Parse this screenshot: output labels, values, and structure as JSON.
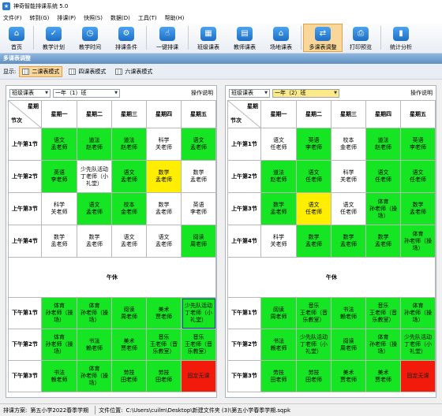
{
  "app": {
    "title": "神奇智能排课系统 5.0"
  },
  "menu": [
    "文件(F)",
    "转到(G)",
    "排课(P)",
    "快照(S)",
    "数据(D)",
    "工具(T)",
    "帮助(H)"
  ],
  "toolbar": [
    {
      "label": "首页",
      "icon": "home-icon",
      "glyph": "⌂"
    },
    {
      "label": "教学计划",
      "icon": "plan-icon",
      "glyph": "✓"
    },
    {
      "label": "教学时间",
      "icon": "clock-icon",
      "glyph": "◷"
    },
    {
      "label": "排课条件",
      "icon": "condition-icon",
      "glyph": "⚙"
    },
    {
      "label": "一键排课",
      "icon": "one-click-icon",
      "glyph": "☝"
    },
    {
      "label": "班级课表",
      "icon": "class-table-icon",
      "glyph": "▦"
    },
    {
      "label": "教师课表",
      "icon": "teacher-table-icon",
      "glyph": "▤"
    },
    {
      "label": "场地课表",
      "icon": "venue-table-icon",
      "glyph": "⌂"
    },
    {
      "label": "多课表调整",
      "icon": "multi-adjust-icon",
      "glyph": "⇄",
      "active": true
    },
    {
      "label": "打印预览",
      "icon": "print-icon",
      "glyph": "⎙"
    },
    {
      "label": "统计分析",
      "icon": "stats-icon",
      "glyph": "▮"
    }
  ],
  "section_title": "多课表调整",
  "display_label": "显示:",
  "modes": [
    {
      "label": "二课表模式",
      "active": true
    },
    {
      "label": "四课表模式",
      "active": false
    },
    {
      "label": "六课表模式",
      "active": false
    }
  ],
  "help_label": "操作说明",
  "corner": {
    "top": "星期",
    "bottom": "节次"
  },
  "days": [
    "星期一",
    "星期二",
    "星期三",
    "星期四",
    "星期五"
  ],
  "lunch_label": "午休",
  "panels": [
    {
      "type_select": "班级课表",
      "class_select": "一年（1）班",
      "periods": [
        {
          "label": "上午第1节",
          "cells": [
            {
              "t": "语文\n孟老师",
              "c": "g"
            },
            {
              "t": "道法\n赵老师",
              "c": "g"
            },
            {
              "t": "道法\n赵老师",
              "c": "g"
            },
            {
              "t": "科学\n关老师",
              "c": "w"
            },
            {
              "t": "语文\n孟老师",
              "c": "g"
            }
          ]
        },
        {
          "label": "上午第2节",
          "cells": [
            {
              "t": "英语\n李老师",
              "c": "g"
            },
            {
              "t": "少先队活动\n丁老师（小\n礼堂）",
              "c": "w"
            },
            {
              "t": "语文\n孟老师",
              "c": "g"
            },
            {
              "t": "数学\n孟老师",
              "c": "y"
            },
            {
              "t": "数学\n孟老师",
              "c": "w"
            }
          ]
        },
        {
          "label": "上午第3节",
          "cells": [
            {
              "t": "科学\n关老师",
              "c": "w"
            },
            {
              "t": "语文\n孟老师",
              "c": "g"
            },
            {
              "t": "校本\n金老师",
              "c": "g"
            },
            {
              "t": "数学\n孟老师",
              "c": "w"
            },
            {
              "t": "英语\n李老师",
              "c": "w"
            }
          ]
        },
        {
          "label": "上午第4节",
          "cells": [
            {
              "t": "数学\n孟老师",
              "c": "w"
            },
            {
              "t": "数学\n孟老师",
              "c": "w"
            },
            {
              "t": "语文\n孟老师",
              "c": "w"
            },
            {
              "t": "语文\n孟老师",
              "c": "w"
            },
            {
              "t": "阅读\n周老师",
              "c": "g"
            }
          ]
        },
        {
          "label": "下午第1节",
          "cells": [
            {
              "t": "体育\n孙老师（操\n场）",
              "c": "g"
            },
            {
              "t": "体育\n孙老师（操\n场）",
              "c": "g"
            },
            {
              "t": "阅读\n周老师",
              "c": "g"
            },
            {
              "t": "美术\n贾老师",
              "c": "g"
            },
            {
              "t": "少先队活动\n丁老师（小\n礼堂）",
              "c": "g",
              "selected": true
            }
          ]
        },
        {
          "label": "下午第2节",
          "cells": [
            {
              "t": "体育\n孙老师（操\n场）",
              "c": "g"
            },
            {
              "t": "书法\n赖老师",
              "c": "g"
            },
            {
              "t": "美术\n贾老师",
              "c": "g"
            },
            {
              "t": "音乐\n王老师（音\n乐教室）",
              "c": "g"
            },
            {
              "t": "音乐\n王老师（音\n乐教室）",
              "c": "g"
            }
          ]
        },
        {
          "label": "下午第3节",
          "cells": [
            {
              "t": "书法\n赖老师",
              "c": "g"
            },
            {
              "t": "体育\n孙老师（操\n场）",
              "c": "g"
            },
            {
              "t": "劳技\n田老师",
              "c": "g"
            },
            {
              "t": "劳技\n田老师",
              "c": "g"
            },
            {
              "t": "固定无课",
              "c": "r"
            }
          ]
        }
      ]
    },
    {
      "type_select": "班级课表",
      "class_select": "一年（2）班",
      "periods": [
        {
          "label": "上午第1节",
          "cells": [
            {
              "t": "语文\n任老师",
              "c": "w"
            },
            {
              "t": "英语\n李老师",
              "c": "g"
            },
            {
              "t": "校本\n金老师",
              "c": "w"
            },
            {
              "t": "道法\n赵老师",
              "c": "g"
            },
            {
              "t": "英语\n李老师",
              "c": "g"
            }
          ]
        },
        {
          "label": "上午第2节",
          "cells": [
            {
              "t": "道法\n赵老师",
              "c": "g"
            },
            {
              "t": "语文\n任老师",
              "c": "g"
            },
            {
              "t": "科学\n关老师",
              "c": "w"
            },
            {
              "t": "语文\n任老师",
              "c": "g"
            },
            {
              "t": "语文\n任老师",
              "c": "g"
            }
          ]
        },
        {
          "label": "上午第3节",
          "cells": [
            {
              "t": "数学\n孟老师",
              "c": "g"
            },
            {
              "t": "语文\n任老师",
              "c": "y"
            },
            {
              "t": "语文\n任老师",
              "c": "w"
            },
            {
              "t": "体育\n孙老师（操\n场）",
              "c": "g"
            },
            {
              "t": "数学\n孟老师",
              "c": "g"
            }
          ]
        },
        {
          "label": "上午第4节",
          "cells": [
            {
              "t": "科学\n关老师",
              "c": "w"
            },
            {
              "t": "数学\n孟老师",
              "c": "g"
            },
            {
              "t": "数学\n孟老师",
              "c": "g"
            },
            {
              "t": "数学\n孟老师",
              "c": "g"
            },
            {
              "t": "体育\n孙老师（操\n场）",
              "c": "g"
            }
          ]
        },
        {
          "label": "下午第1节",
          "cells": [
            {
              "t": "阅读\n周老师",
              "c": "g"
            },
            {
              "t": "音乐\n王老师（音\n乐教室）",
              "c": "g"
            },
            {
              "t": "书法\n赖老师",
              "c": "g"
            },
            {
              "t": "音乐\n王老师（音\n乐教室）",
              "c": "g"
            },
            {
              "t": "体育\n孙老师（操\n场）",
              "c": "g"
            }
          ]
        },
        {
          "label": "下午第2节",
          "cells": [
            {
              "t": "书法\n赖老师",
              "c": "g"
            },
            {
              "t": "少先队活动\n丁老师（小\n礼堂）",
              "c": "g"
            },
            {
              "t": "阅读\n周老师",
              "c": "g"
            },
            {
              "t": "体育\n孙老师（操\n场）",
              "c": "g"
            },
            {
              "t": "少先队活动\n丁老师（小\n礼堂）",
              "c": "g"
            }
          ]
        },
        {
          "label": "下午第3节",
          "cells": [
            {
              "t": "劳技\n田老师",
              "c": "g"
            },
            {
              "t": "劳技\n田老师",
              "c": "g"
            },
            {
              "t": "美术\n贾老师",
              "c": "g"
            },
            {
              "t": "美术\n贾老师",
              "c": "g"
            },
            {
              "t": "固定无课",
              "c": "r"
            }
          ]
        }
      ]
    }
  ],
  "status": {
    "plan_label": "排课方案:",
    "plan_value": "第五小学2022春季学期",
    "file_label": "文件位置:",
    "file_value": "C:\\Users\\cuilm\\Desktop\\新建文件夹 (3)\\第五小学春季学期.sqpk"
  }
}
